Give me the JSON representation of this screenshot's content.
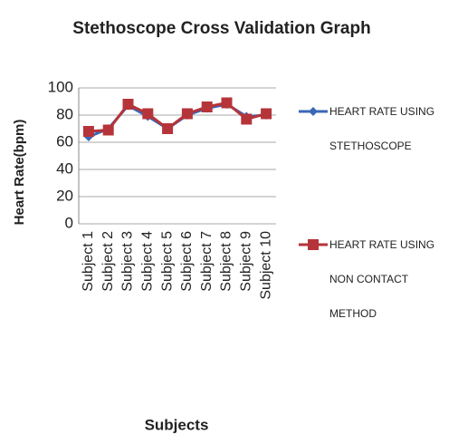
{
  "chart_data": {
    "type": "line",
    "title": "Stethoscope Cross Validation Graph",
    "x_label": "Subjects",
    "y_label": "Heart Rate(bpm)",
    "categories": [
      "Subject 1",
      "Subject 2",
      "Subject 3",
      "Subject 4",
      "Subject 5",
      "Subject 6",
      "Subject 7",
      "Subject 8",
      "Subject 9",
      "Subject 10"
    ],
    "series": [
      {
        "name": "HEART RATE USING STETHOSCOPE",
        "color": "#3a67b6",
        "marker": "diamond",
        "values": [
          64,
          70,
          87,
          79,
          70,
          80,
          85,
          88,
          79,
          80
        ]
      },
      {
        "name": "HEART RATE USING NON CONTACT METHOD",
        "color": "#b5343a",
        "marker": "square",
        "values": [
          68,
          69,
          88,
          81,
          70,
          81,
          86,
          89,
          77,
          81
        ]
      }
    ],
    "ylim": [
      0,
      100
    ],
    "yticks": [
      0,
      20,
      40,
      60,
      80,
      100
    ],
    "grid": true,
    "legend": "right"
  }
}
